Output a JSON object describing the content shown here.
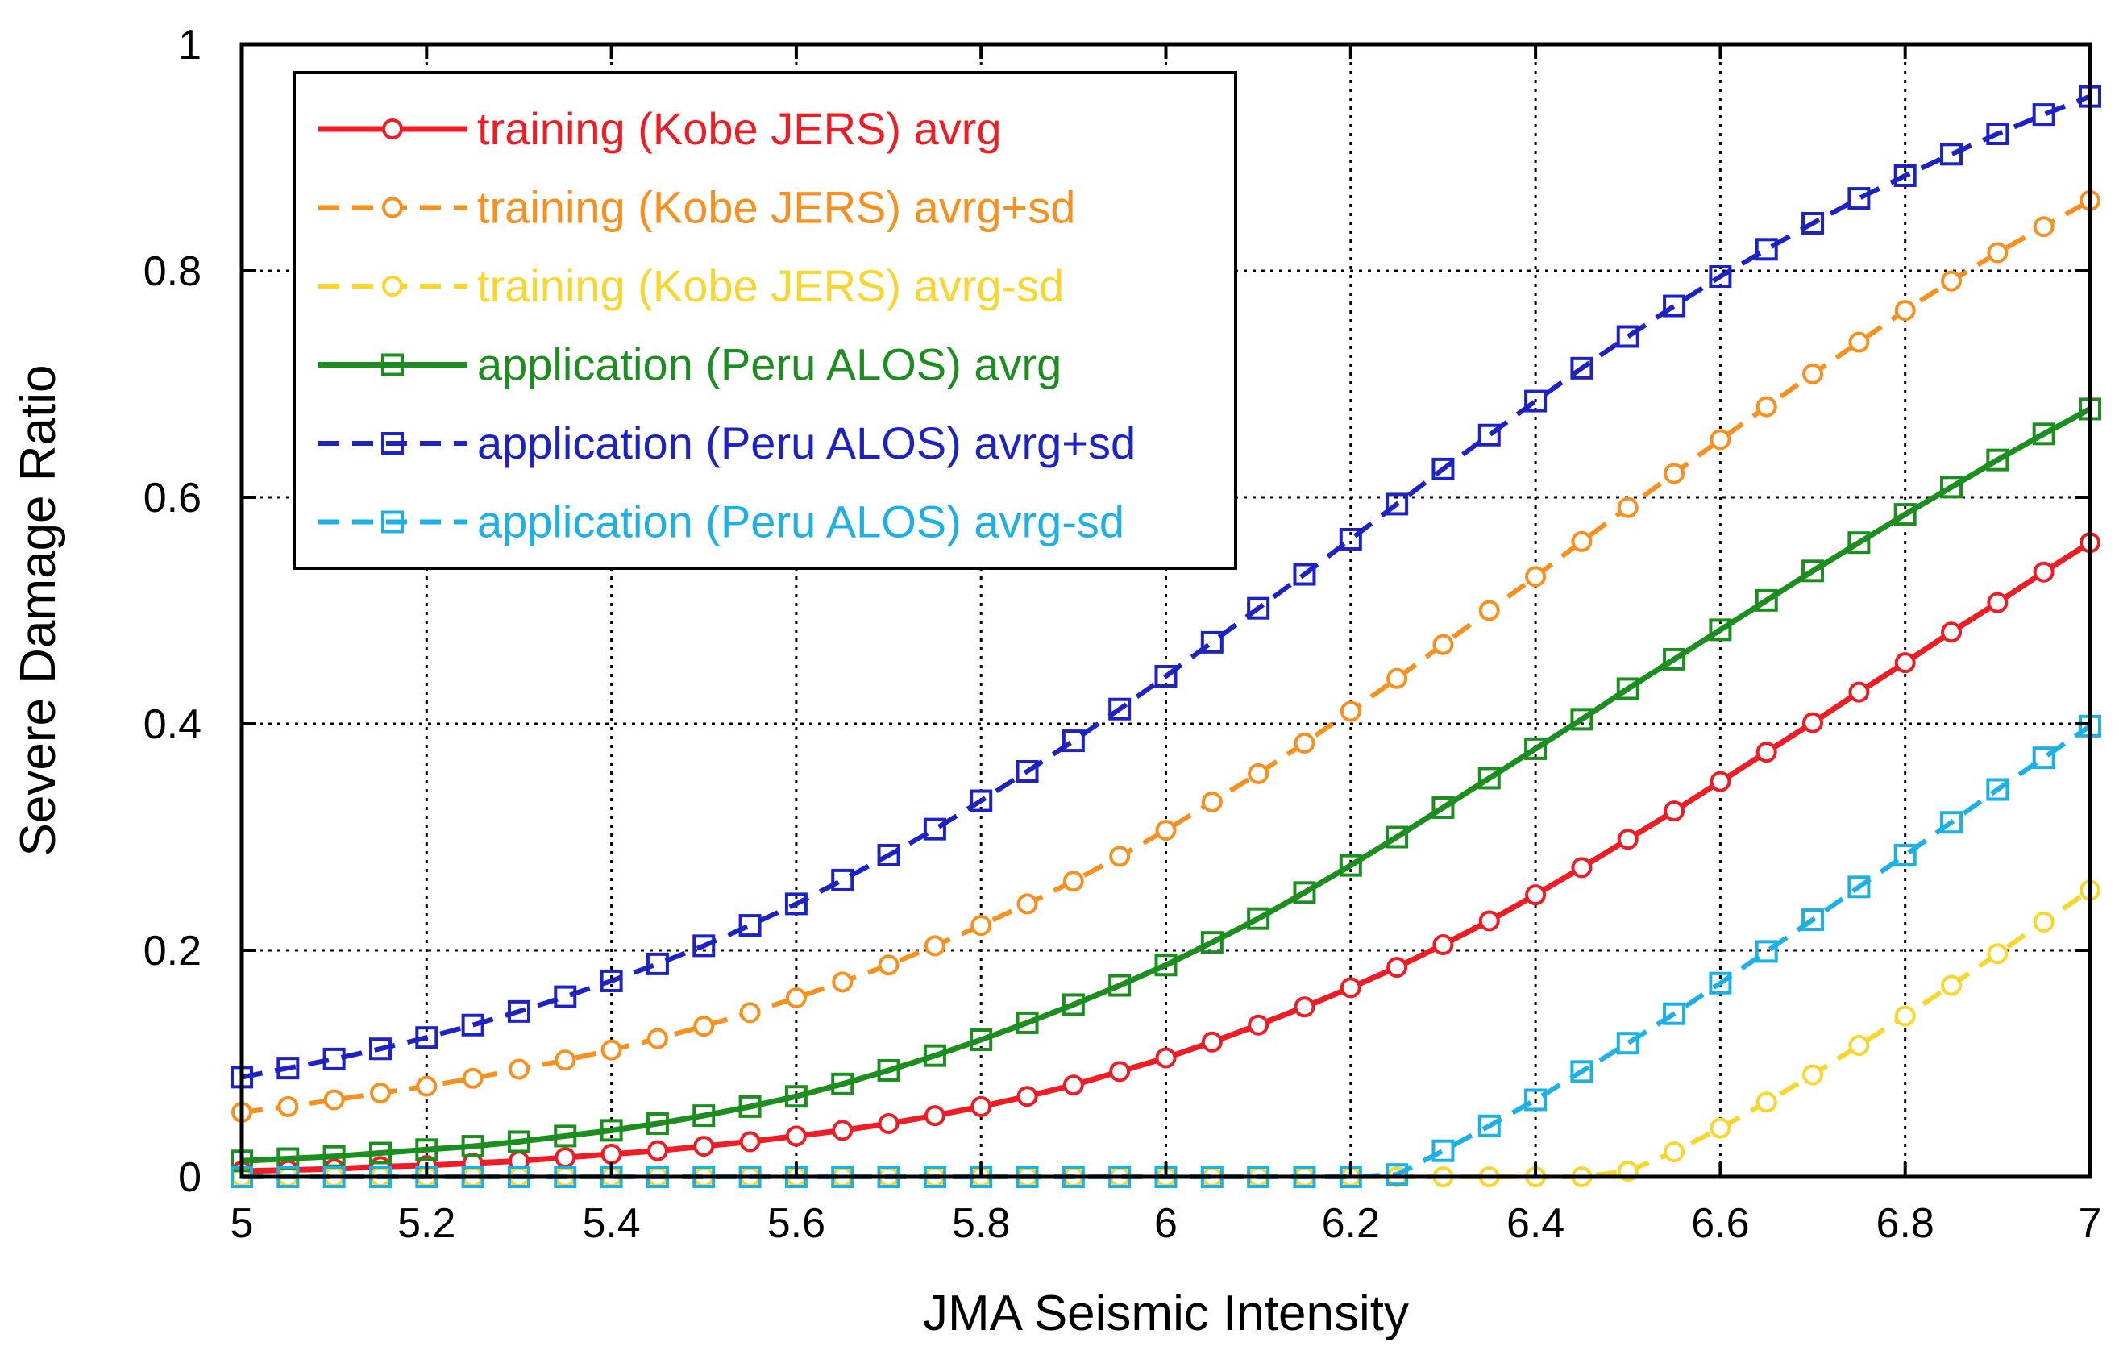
{
  "chart_data": {
    "type": "line",
    "title": "",
    "xlabel": "JMA Seismic Intensity",
    "ylabel": "Severe Damage Ratio",
    "xlim": [
      5,
      7
    ],
    "ylim": [
      0,
      1
    ],
    "grid": true,
    "legend_position": "top-left",
    "x_ticks": [
      5,
      5.2,
      5.4,
      5.6,
      5.8,
      6,
      6.2,
      6.4,
      6.6,
      6.8,
      7
    ],
    "x_tick_labels": [
      "5",
      "5.2",
      "5.4",
      "5.6",
      "5.8",
      "6",
      "6.2",
      "6.4",
      "6.6",
      "6.8",
      "7"
    ],
    "y_ticks": [
      0,
      0.2,
      0.4,
      0.6,
      0.8,
      1
    ],
    "y_tick_labels": [
      "0",
      "0.2",
      "0.4",
      "0.6",
      "0.8",
      "1"
    ],
    "x": [
      5.0,
      5.05,
      5.1,
      5.15,
      5.2,
      5.25,
      5.3,
      5.35,
      5.4,
      5.45,
      5.5,
      5.55,
      5.6,
      5.65,
      5.7,
      5.75,
      5.8,
      5.85,
      5.9,
      5.95,
      6.0,
      6.05,
      6.1,
      6.15,
      6.2,
      6.25,
      6.3,
      6.35,
      6.4,
      6.45,
      6.5,
      6.55,
      6.6,
      6.65,
      6.7,
      6.75,
      6.8,
      6.85,
      6.9,
      6.95,
      7.0
    ],
    "series": [
      {
        "name": "training (Kobe JERS) avrg",
        "color": "#ee1c25",
        "dash": "solid",
        "marker": "circle",
        "values": [
          0.005,
          0.006,
          0.007,
          0.009,
          0.01,
          0.012,
          0.014,
          0.017,
          0.02,
          0.023,
          0.027,
          0.031,
          0.036,
          0.041,
          0.047,
          0.054,
          0.062,
          0.071,
          0.081,
          0.093,
          0.105,
          0.119,
          0.134,
          0.15,
          0.167,
          0.185,
          0.205,
          0.226,
          0.249,
          0.273,
          0.298,
          0.323,
          0.349,
          0.375,
          0.401,
          0.428,
          0.454,
          0.481,
          0.507,
          0.534,
          0.56
        ]
      },
      {
        "name": "training (Kobe JERS) avrg+sd",
        "color": "#f7901e",
        "dash": "dashed",
        "marker": "circle",
        "values": [
          0.057,
          0.062,
          0.068,
          0.074,
          0.08,
          0.087,
          0.095,
          0.103,
          0.112,
          0.122,
          0.133,
          0.145,
          0.158,
          0.172,
          0.187,
          0.204,
          0.222,
          0.241,
          0.261,
          0.283,
          0.306,
          0.331,
          0.356,
          0.383,
          0.411,
          0.44,
          0.47,
          0.5,
          0.53,
          0.561,
          0.591,
          0.621,
          0.651,
          0.68,
          0.709,
          0.737,
          0.765,
          0.791,
          0.816,
          0.839,
          0.862
        ]
      },
      {
        "name": "training (Kobe JERS) avrg-sd",
        "color": "#f9d62e",
        "dash": "dashed",
        "marker": "circle",
        "values": [
          0,
          0,
          0,
          0,
          0,
          0,
          0,
          0,
          0,
          0,
          0,
          0,
          0,
          0,
          0,
          0,
          0,
          0,
          0,
          0,
          0,
          0,
          0,
          0,
          0,
          0,
          0,
          0,
          0,
          0,
          0.005,
          0.022,
          0.043,
          0.066,
          0.09,
          0.116,
          0.142,
          0.169,
          0.197,
          0.225,
          0.253
        ]
      },
      {
        "name": "application (Peru ALOS) avrg",
        "color": "#1b8e1f",
        "dash": "solid",
        "marker": "square",
        "values": [
          0.014,
          0.016,
          0.018,
          0.021,
          0.024,
          0.027,
          0.031,
          0.036,
          0.041,
          0.047,
          0.054,
          0.062,
          0.071,
          0.082,
          0.094,
          0.107,
          0.121,
          0.136,
          0.152,
          0.169,
          0.187,
          0.207,
          0.228,
          0.251,
          0.275,
          0.3,
          0.326,
          0.352,
          0.378,
          0.404,
          0.431,
          0.457,
          0.483,
          0.509,
          0.535,
          0.56,
          0.585,
          0.609,
          0.633,
          0.656,
          0.678
        ]
      },
      {
        "name": "application (Peru ALOS) avrg+sd",
        "color": "#1d22c4",
        "dash": "dashed",
        "marker": "square",
        "values": [
          0.088,
          0.096,
          0.104,
          0.113,
          0.123,
          0.134,
          0.146,
          0.159,
          0.173,
          0.188,
          0.204,
          0.222,
          0.241,
          0.262,
          0.284,
          0.307,
          0.332,
          0.358,
          0.385,
          0.413,
          0.442,
          0.472,
          0.502,
          0.532,
          0.563,
          0.594,
          0.625,
          0.655,
          0.685,
          0.714,
          0.742,
          0.769,
          0.795,
          0.819,
          0.842,
          0.864,
          0.884,
          0.903,
          0.921,
          0.938,
          0.954
        ]
      },
      {
        "name": "application (Peru ALOS) avrg-sd",
        "color": "#1cb0e6",
        "dash": "dashed",
        "marker": "square",
        "values": [
          0,
          0,
          0,
          0,
          0,
          0,
          0,
          0,
          0,
          0,
          0,
          0,
          0,
          0,
          0,
          0,
          0,
          0,
          0,
          0,
          0,
          0,
          0,
          0,
          0,
          0.002,
          0.023,
          0.045,
          0.068,
          0.093,
          0.118,
          0.144,
          0.171,
          0.199,
          0.227,
          0.256,
          0.284,
          0.313,
          0.342,
          0.37,
          0.398
        ]
      }
    ]
  }
}
